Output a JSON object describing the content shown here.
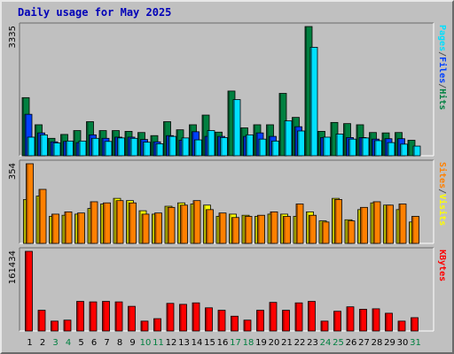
{
  "title": "Daily usage for May 2025",
  "colors": {
    "background": "#c0c0c0",
    "hits": "#008040",
    "files": "#0040ff",
    "pages": "#00e0ff",
    "visits": "#ffff00",
    "sites": "#ff8000",
    "kbytes": "#ff0000",
    "title": "#0000b8",
    "weekend_label": "#008040"
  },
  "chart_data": [
    {
      "type": "bar",
      "name": "hits-files-pages",
      "categories": [
        "1",
        "2",
        "3",
        "4",
        "5",
        "6",
        "7",
        "8",
        "9",
        "10",
        "11",
        "12",
        "13",
        "14",
        "15",
        "16",
        "17",
        "18",
        "19",
        "20",
        "21",
        "22",
        "23",
        "24",
        "25",
        "26",
        "27",
        "28",
        "29",
        "30",
        "31"
      ],
      "max_label": "3335",
      "ylim": [
        0,
        3335
      ],
      "legend": [
        {
          "label": "Pages",
          "color": "#00e0ff"
        },
        {
          "label": "/",
          "color": "#555555"
        },
        {
          "label": "Files",
          "color": "#0040ff"
        },
        {
          "label": "/",
          "color": "#555555"
        },
        {
          "label": "Hits",
          "color": "#008040"
        }
      ],
      "series": [
        {
          "name": "Hits",
          "color": "#008040",
          "values": [
            1500,
            800,
            450,
            550,
            650,
            880,
            650,
            650,
            630,
            600,
            520,
            880,
            670,
            800,
            1050,
            610,
            1670,
            720,
            800,
            800,
            1610,
            990,
            3335,
            630,
            860,
            830,
            800,
            600,
            590,
            600,
            400
          ]
        },
        {
          "name": "Files",
          "color": "#0040ff",
          "values": [
            1070,
            590,
            360,
            370,
            340,
            540,
            450,
            480,
            480,
            420,
            360,
            520,
            400,
            620,
            500,
            500,
            0,
            500,
            590,
            500,
            0,
            750,
            0,
            470,
            0,
            470,
            470,
            430,
            440,
            440,
            0
          ]
        },
        {
          "name": "Pages",
          "color": "#00e0ff",
          "values": [
            480,
            540,
            330,
            380,
            380,
            450,
            370,
            460,
            450,
            350,
            310,
            500,
            460,
            410,
            650,
            470,
            1450,
            540,
            430,
            380,
            900,
            640,
            2800,
            480,
            560,
            430,
            460,
            390,
            340,
            300,
            250
          ]
        }
      ]
    },
    {
      "type": "bar",
      "name": "visits-sites",
      "categories": [
        "1",
        "2",
        "3",
        "4",
        "5",
        "6",
        "7",
        "8",
        "9",
        "10",
        "11",
        "12",
        "13",
        "14",
        "15",
        "16",
        "17",
        "18",
        "19",
        "20",
        "21",
        "22",
        "23",
        "24",
        "25",
        "26",
        "27",
        "28",
        "29",
        "30",
        "31"
      ],
      "max_label": "354",
      "ylim": [
        0,
        354
      ],
      "legend": [
        {
          "label": "Sites",
          "color": "#ff8000"
        },
        {
          "label": "/",
          "color": "#555555"
        },
        {
          "label": "Visits",
          "color": "#ffff00"
        }
      ],
      "series": [
        {
          "name": "Visits",
          "color": "#ffff00",
          "values": [
            195,
            210,
            120,
            125,
            130,
            155,
            175,
            200,
            190,
            145,
            130,
            165,
            180,
            175,
            170,
            120,
            130,
            125,
            120,
            130,
            130,
            120,
            140,
            100,
            200,
            105,
            150,
            180,
            170,
            150,
            95
          ]
        },
        {
          "name": "Sites",
          "color": "#ff8000",
          "values": [
            354,
            240,
            130,
            140,
            135,
            185,
            180,
            190,
            180,
            130,
            135,
            160,
            170,
            190,
            150,
            135,
            115,
            120,
            125,
            140,
            120,
            175,
            125,
            95,
            195,
            100,
            160,
            185,
            170,
            175,
            120
          ]
        }
      ]
    },
    {
      "type": "bar",
      "name": "kbytes",
      "categories": [
        "1",
        "2",
        "3",
        "4",
        "5",
        "6",
        "7",
        "8",
        "9",
        "10",
        "11",
        "12",
        "13",
        "14",
        "15",
        "16",
        "17",
        "18",
        "19",
        "20",
        "21",
        "22",
        "23",
        "24",
        "25",
        "26",
        "27",
        "28",
        "29",
        "30",
        "31"
      ],
      "max_label": "161434",
      "ylim": [
        0,
        161434
      ],
      "legend": [
        {
          "label": "KBytes",
          "color": "#ff0000"
        }
      ],
      "series": [
        {
          "name": "KBytes",
          "color": "#ff0000",
          "values": [
            161434,
            42000,
            20000,
            22000,
            60000,
            59000,
            60000,
            59000,
            50000,
            20000,
            25000,
            56000,
            54000,
            57000,
            47000,
            42000,
            30000,
            22000,
            42000,
            58000,
            42000,
            57000,
            60000,
            20000,
            40000,
            49000,
            44000,
            45000,
            36000,
            20000,
            27000
          ]
        }
      ]
    }
  ],
  "weekend_days": [
    "3",
    "4",
    "10",
    "11",
    "17",
    "18",
    "24",
    "25",
    "31"
  ]
}
